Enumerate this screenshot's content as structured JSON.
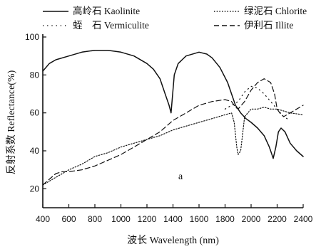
{
  "chart_data": {
    "type": "line",
    "xlabel": "波长 Wavelength (nm)",
    "ylabel": "反射系数 Reflectance(%)",
    "panel_label": "a",
    "xlim": [
      400,
      2400
    ],
    "ylim": [
      10,
      100
    ],
    "xticks": [
      400,
      600,
      800,
      1000,
      1200,
      1400,
      1600,
      1800,
      2000,
      2200,
      2400
    ],
    "yticks": [
      20,
      40,
      60,
      80,
      100
    ],
    "x_tick_labels": [
      "400",
      "600",
      "800",
      "1000",
      "1200",
      "1400",
      "1600",
      "1800",
      "2000",
      "2200",
      "2400"
    ],
    "y_tick_labels": [
      "20",
      "40",
      "60",
      "80",
      "100"
    ],
    "legend_position": "top",
    "series": [
      {
        "name": "高岭石 Kaolinite",
        "style": "solid",
        "x": [
          400,
          450,
          500,
          600,
          700,
          800,
          900,
          1000,
          1100,
          1200,
          1250,
          1300,
          1340,
          1370,
          1385,
          1395,
          1410,
          1440,
          1500,
          1600,
          1660,
          1700,
          1760,
          1820,
          1860,
          1880,
          1900,
          1920,
          1960,
          2000,
          2050,
          2100,
          2140,
          2160,
          2170,
          2190,
          2210,
          2230,
          2260,
          2300,
          2350,
          2400
        ],
        "y": [
          82,
          86,
          88,
          90,
          92,
          93,
          93,
          92,
          90,
          86,
          83,
          78,
          70,
          64,
          60,
          68,
          80,
          86,
          90,
          92,
          91,
          89,
          84,
          76,
          68,
          64,
          62,
          60,
          57,
          55,
          52,
          48,
          42,
          38,
          36,
          42,
          50,
          52,
          50,
          44,
          40,
          37
        ]
      },
      {
        "name": "绿泥石 Chlorite",
        "style": "dotted",
        "x": [
          400,
          500,
          600,
          700,
          800,
          900,
          1000,
          1100,
          1200,
          1300,
          1400,
          1500,
          1600,
          1700,
          1800,
          1850,
          1870,
          1890,
          1900,
          1920,
          1950,
          2000,
          2050,
          2100,
          2150,
          2200,
          2250,
          2300,
          2400
        ],
        "y": [
          22,
          26,
          30,
          33,
          37,
          39,
          42,
          44,
          46,
          48,
          51,
          53,
          55,
          57,
          59,
          60,
          55,
          42,
          38,
          40,
          58,
          62,
          62,
          63,
          62,
          62,
          61,
          60,
          59
        ]
      },
      {
        "name": "蛭　石 Vermiculite",
        "style": "sparse-dotted",
        "x": [
          1800,
          1850,
          1900,
          1950,
          2000,
          2050,
          2100,
          2150,
          2200,
          2250,
          2300
        ],
        "y": [
          62,
          64,
          66,
          71,
          74,
          73,
          70,
          66,
          62,
          58,
          56
        ]
      },
      {
        "name": "伊利石 Illite",
        "style": "dashed",
        "x": [
          400,
          450,
          500,
          550,
          600,
          700,
          800,
          900,
          1000,
          1100,
          1200,
          1300,
          1400,
          1500,
          1600,
          1700,
          1800,
          1850,
          1880,
          1900,
          1950,
          2000,
          2050,
          2100,
          2150,
          2180,
          2200,
          2220,
          2250,
          2300,
          2350,
          2400
        ],
        "y": [
          22,
          25,
          28,
          29,
          29,
          30,
          32,
          35,
          38,
          42,
          46,
          50,
          56,
          60,
          64,
          66,
          67,
          66,
          63,
          62,
          66,
          72,
          76,
          78,
          76,
          70,
          62,
          60,
          58,
          60,
          62,
          64
        ]
      }
    ]
  }
}
